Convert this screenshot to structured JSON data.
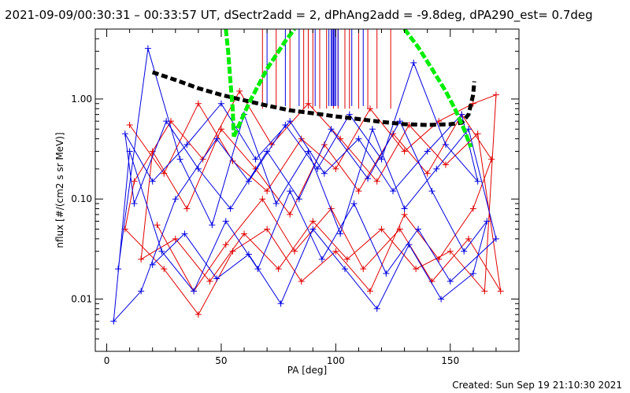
{
  "chart_data": {
    "type": "line",
    "title": "2021-09-09/00:30:31 – 00:33:57 UT, dSectr2add = 2, dPhAng2add = -9.8deg, dPA290_est=  0.7deg",
    "xlabel": "PA [deg]",
    "ylabel": "nflux [#/(cm2 s sr MeV)]",
    "xlim": [
      -5,
      180
    ],
    "ylim": [
      0.003,
      5
    ],
    "yscale": "log",
    "grid": false,
    "x_ticks": [
      0,
      50,
      100,
      150
    ],
    "x_tick_labels": [
      "0",
      "50",
      "100",
      "150"
    ],
    "y_ticks": [
      0.01,
      0.1,
      1.0
    ],
    "y_tick_labels": [
      "0.01",
      "0.10",
      "1.00"
    ],
    "colors": {
      "red_series": "#e00000",
      "blue_series": "#0000e0",
      "black_fit": "#000000",
      "green_fit": "#00ee00"
    },
    "series": [
      {
        "color": "#e00000",
        "marker": "plus",
        "style": "solid",
        "points": [
          [
            10,
            0.55
          ],
          [
            25,
            0.18
          ],
          [
            40,
            0.9
          ],
          [
            55,
            0.24
          ],
          [
            70,
            0.12
          ],
          [
            85,
            0.4
          ],
          [
            100,
            0.2
          ],
          [
            115,
            0.8
          ],
          [
            130,
            0.3
          ],
          [
            145,
            0.6
          ],
          [
            160,
            0.9
          ],
          [
            170,
            1.1
          ],
          [
            165,
            0.012
          ],
          [
            150,
            0.03
          ],
          [
            135,
            0.02
          ],
          [
            120,
            0.05
          ],
          [
            105,
            0.025
          ],
          [
            90,
            0.06
          ],
          [
            75,
            0.02
          ],
          [
            60,
            0.045
          ],
          [
            45,
            0.015
          ],
          [
            30,
            0.04
          ],
          [
            15,
            0.025
          ],
          [
            20,
            0.3
          ],
          [
            35,
            0.08
          ],
          [
            50,
            0.5
          ],
          [
            65,
            0.2
          ],
          [
            80,
            0.07
          ],
          [
            95,
            0.35
          ],
          [
            110,
            0.12
          ],
          [
            125,
            0.45
          ],
          [
            140,
            0.18
          ],
          [
            155,
            0.7
          ],
          [
            168,
            0.25
          ],
          [
            160,
            0.08
          ],
          [
            145,
            0.025
          ],
          [
            130,
            0.07
          ],
          [
            115,
            0.012
          ],
          [
            100,
            0.03
          ],
          [
            85,
            0.015
          ],
          [
            70,
            0.05
          ],
          [
            55,
            0.03
          ],
          [
            40,
            0.007
          ],
          [
            25,
            0.02
          ],
          [
            8,
            0.05
          ],
          [
            12,
            0.15
          ],
          [
            28,
            0.6
          ],
          [
            42,
            0.25
          ],
          [
            58,
            1.2
          ],
          [
            72,
            0.35
          ],
          [
            88,
            0.9
          ],
          [
            102,
            0.4
          ],
          [
            118,
            0.15
          ],
          [
            132,
            0.55
          ],
          [
            148,
            0.22
          ],
          [
            162,
            0.45
          ],
          [
            172,
            0.012
          ],
          [
            158,
            0.04
          ],
          [
            142,
            0.015
          ],
          [
            128,
            0.05
          ],
          [
            112,
            0.02
          ],
          [
            98,
            0.08
          ],
          [
            82,
            0.03
          ],
          [
            68,
            0.1
          ],
          [
            52,
            0.035
          ],
          [
            38,
            0.012
          ],
          [
            22,
            0.055
          ]
        ]
      },
      {
        "color": "#0000e0",
        "marker": "plus",
        "style": "solid",
        "points": [
          [
            5,
            0.02
          ],
          [
            18,
            3.2
          ],
          [
            32,
            0.25
          ],
          [
            46,
            0.055
          ],
          [
            60,
            0.7
          ],
          [
            74,
            0.09
          ],
          [
            88,
            0.3
          ],
          [
            102,
            0.045
          ],
          [
            116,
            0.5
          ],
          [
            130,
            0.08
          ],
          [
            144,
            0.2
          ],
          [
            158,
            0.5
          ],
          [
            170,
            0.04
          ],
          [
            150,
            0.015
          ],
          [
            136,
            0.05
          ],
          [
            122,
            0.018
          ],
          [
            108,
            0.09
          ],
          [
            94,
            0.025
          ],
          [
            80,
            0.12
          ],
          [
            66,
            0.02
          ],
          [
            52,
            0.06
          ],
          [
            38,
            0.012
          ],
          [
            24,
            0.03
          ],
          [
            10,
            0.3
          ],
          [
            3,
            0.006
          ],
          [
            15,
            0.012
          ],
          [
            30,
            0.1
          ],
          [
            48,
            0.4
          ],
          [
            62,
            0.15
          ],
          [
            78,
            0.55
          ],
          [
            92,
            0.2
          ],
          [
            106,
            0.7
          ],
          [
            120,
            0.25
          ],
          [
            134,
            2.3
          ],
          [
            148,
            0.35
          ],
          [
            162,
            0.15
          ],
          [
            155,
            0.7
          ],
          [
            140,
            0.3
          ],
          [
            125,
            0.12
          ],
          [
            110,
            0.4
          ],
          [
            95,
            0.18
          ],
          [
            80,
            0.6
          ],
          [
            65,
            0.25
          ],
          [
            50,
            0.9
          ],
          [
            35,
            0.35
          ],
          [
            20,
            0.15
          ],
          [
            8,
            0.45
          ],
          [
            12,
            0.09
          ],
          [
            26,
            0.6
          ],
          [
            40,
            0.2
          ],
          [
            54,
            0.08
          ],
          [
            70,
            0.3
          ],
          [
            84,
            0.1
          ],
          [
            98,
            0.5
          ],
          [
            114,
            0.16
          ],
          [
            128,
            0.6
          ],
          [
            142,
            0.12
          ],
          [
            156,
            0.03
          ],
          [
            166,
            0.06
          ],
          [
            160,
            0.018
          ],
          [
            146,
            0.01
          ],
          [
            132,
            0.035
          ],
          [
            118,
            0.008
          ],
          [
            104,
            0.02
          ],
          [
            90,
            0.05
          ],
          [
            76,
            0.009
          ],
          [
            62,
            0.028
          ],
          [
            48,
            0.016
          ],
          [
            34,
            0.045
          ],
          [
            20,
            0.022
          ]
        ]
      },
      {
        "color": "#000000",
        "style": "thick-dashed",
        "points": [
          [
            20,
            1.85
          ],
          [
            30,
            1.55
          ],
          [
            40,
            1.28
          ],
          [
            50,
            1.1
          ],
          [
            60,
            0.97
          ],
          [
            70,
            0.86
          ],
          [
            80,
            0.77
          ],
          [
            90,
            0.72
          ],
          [
            100,
            0.67
          ],
          [
            110,
            0.63
          ],
          [
            120,
            0.59
          ],
          [
            130,
            0.56
          ],
          [
            140,
            0.55
          ],
          [
            150,
            0.56
          ],
          [
            155,
            0.58
          ],
          [
            158,
            0.7
          ],
          [
            160,
            1.1
          ],
          [
            160.5,
            1.5
          ]
        ]
      },
      {
        "color": "#00ee00",
        "style": "thick-dashed",
        "segments": [
          [
            [
              52,
              5
            ],
            [
              53,
              3.0
            ],
            [
              54,
              1.5
            ],
            [
              55,
              0.8
            ],
            [
              55.5,
              0.42
            ]
          ],
          [
            [
              55.5,
              0.42
            ],
            [
              62,
              0.9
            ],
            [
              70,
              2.0
            ],
            [
              78,
              3.8
            ],
            [
              82,
              5
            ]
          ],
          [
            [
              130,
              5
            ],
            [
              136,
              3.3
            ],
            [
              142,
              2.0
            ],
            [
              148,
              1.2
            ],
            [
              152,
              0.8
            ],
            [
              156,
              0.5
            ],
            [
              159,
              0.33
            ]
          ]
        ]
      }
    ],
    "vertical_lines": {
      "red_x": [
        68,
        74,
        80,
        86,
        88,
        90,
        93,
        96,
        99,
        101,
        104,
        106,
        110,
        114,
        118,
        124
      ],
      "blue_x": [
        70,
        78,
        84,
        91,
        97,
        98,
        98.5,
        99,
        99.5,
        100,
        101,
        107,
        112
      ]
    }
  },
  "footer": {
    "created": "Created: Sun Sep 19 21:10:30 2021"
  }
}
